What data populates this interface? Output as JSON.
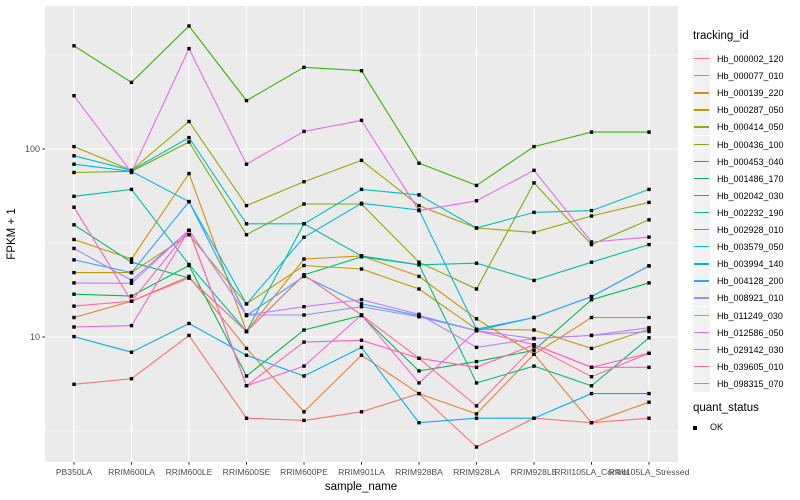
{
  "chart_data": {
    "type": "line",
    "xlabel": "sample_name",
    "ylabel": "FPKM + 1",
    "y_scale": "log10",
    "y_major_ticks": [
      10,
      100
    ],
    "y_minor_ticks": [
      3.1623,
      31.623,
      316.23
    ],
    "ylim": [
      2.1,
      550
    ],
    "grid": true,
    "legend_position": "right",
    "legend_title": "tracking_id",
    "quant_legend": {
      "title": "quant_status",
      "label": "OK"
    },
    "point_shape": "filled-square",
    "point_color": "#000000",
    "panel_background": "#EBEBEB",
    "grid_color": "#FFFFFF",
    "axis_text_color": "#4D4D4D",
    "x_categories": [
      "PB350LA",
      "RRIM600LA",
      "RRIM600LE",
      "RRIM600SE",
      "RRIM600PE",
      "RRIM901LA",
      "RRIM928BA",
      "RRIM928LA",
      "RRIM928LE",
      "RRII105LA_Control",
      "RRII105LA_Stressed"
    ],
    "series": [
      {
        "name": "Hb_000002_120",
        "color": "#F8766D",
        "values": [
          5.6,
          6,
          10.2,
          3.7,
          3.6,
          4,
          5,
          2.6,
          3.7,
          3.5,
          3.7
        ]
      },
      {
        "name": "Hb_000077_010",
        "color": "#EA8331",
        "values": [
          12.7,
          15.5,
          21,
          8.7,
          4,
          8,
          5,
          3.9,
          8.1,
          3.5,
          4.5
        ]
      },
      {
        "name": "Hb_000139_220",
        "color": "#D89000",
        "values": [
          33,
          26,
          74,
          10.7,
          26,
          27,
          21,
          12.5,
          8.1,
          12.7,
          12.7
        ]
      },
      {
        "name": "Hb_000287_050",
        "color": "#C09B00",
        "values": [
          22,
          22,
          35,
          15,
          24,
          23,
          18,
          11,
          10.9,
          8.7,
          11
        ]
      },
      {
        "name": "Hb_000414_050",
        "color": "#A3A500",
        "values": [
          103,
          77,
          140,
          50,
          67,
          87,
          50,
          38,
          36,
          44,
          52
        ]
      },
      {
        "name": "Hb_000436_100",
        "color": "#7CAE00",
        "values": [
          75,
          76,
          109,
          35,
          51,
          51,
          25,
          18,
          66,
          31,
          42
        ]
      },
      {
        "name": "Hb_000453_040",
        "color": "#39B600",
        "values": [
          354,
          226,
          451,
          181,
          272,
          261,
          84,
          64,
          103,
          123,
          123
        ]
      },
      {
        "name": "Hb_001486_170",
        "color": "#00BB4E",
        "values": [
          16.9,
          16.5,
          24,
          6.2,
          10.9,
          13,
          6.6,
          7.4,
          8.5,
          15.8,
          19.4
        ]
      },
      {
        "name": "Hb_002042_030",
        "color": "#00BF7D",
        "values": [
          39.5,
          25,
          20.6,
          10.7,
          21.4,
          26.7,
          24.2,
          5.7,
          7,
          5.5,
          9.9
        ]
      },
      {
        "name": "Hb_002232_190",
        "color": "#00C1A3",
        "values": [
          56,
          61,
          24.3,
          10.7,
          40,
          27,
          24.2,
          24.7,
          20,
          25,
          31
        ]
      },
      {
        "name": "Hb_002928_010",
        "color": "#00BFC4",
        "values": [
          92,
          77,
          115,
          40,
          40,
          61,
          57,
          38,
          46,
          47,
          61
        ]
      },
      {
        "name": "Hb_003579_050",
        "color": "#00BAE0",
        "values": [
          83,
          76,
          52.5,
          15,
          33.9,
          51.4,
          47.4,
          11,
          12.7,
          16.4,
          23.9
        ]
      },
      {
        "name": "Hb_003994_140",
        "color": "#00B0F6",
        "values": [
          10.05,
          8.3,
          11.8,
          8,
          6.2,
          8.8,
          3.5,
          3.7,
          3.7,
          5,
          5
        ]
      },
      {
        "name": "Hb_004128_200",
        "color": "#35A2FF",
        "values": [
          25.7,
          22,
          52.5,
          13,
          21,
          15,
          13,
          10.8,
          12.7,
          16.4,
          23.9
        ]
      },
      {
        "name": "Hb_008921_010",
        "color": "#9590FF",
        "values": [
          29.6,
          20,
          37,
          13.1,
          13.1,
          14.5,
          12.8,
          10.8,
          9.8,
          10.2,
          10.7
        ]
      },
      {
        "name": "Hb_011249_030",
        "color": "#C77CFF",
        "values": [
          19.4,
          19.3,
          37,
          13.1,
          14.5,
          15.8,
          13.2,
          8.8,
          9.8,
          10.2,
          11.2
        ]
      },
      {
        "name": "Hb_012586_050",
        "color": "#E76BF3",
        "values": [
          192,
          75,
          342,
          83,
          124,
          142,
          47,
          53,
          77,
          32,
          34
        ]
      },
      {
        "name": "Hb_029142_030",
        "color": "#FA62DB",
        "values": [
          11.3,
          11.5,
          37,
          5.5,
          7,
          13.1,
          5.7,
          10.8,
          9.1,
          6.9,
          6.9
        ]
      },
      {
        "name": "Hb_039605_010",
        "color": "#FF62BC",
        "values": [
          49,
          15.5,
          37,
          5.5,
          9.4,
          9.6,
          7.7,
          6.9,
          9.1,
          6.9,
          8.2
        ]
      },
      {
        "name": "Hb_098315_070",
        "color": "#FF6A98",
        "values": [
          14.6,
          15.5,
          20.6,
          10.7,
          21.4,
          13.1,
          7.7,
          4.3,
          8.9,
          6.15,
          8.2
        ]
      }
    ]
  }
}
